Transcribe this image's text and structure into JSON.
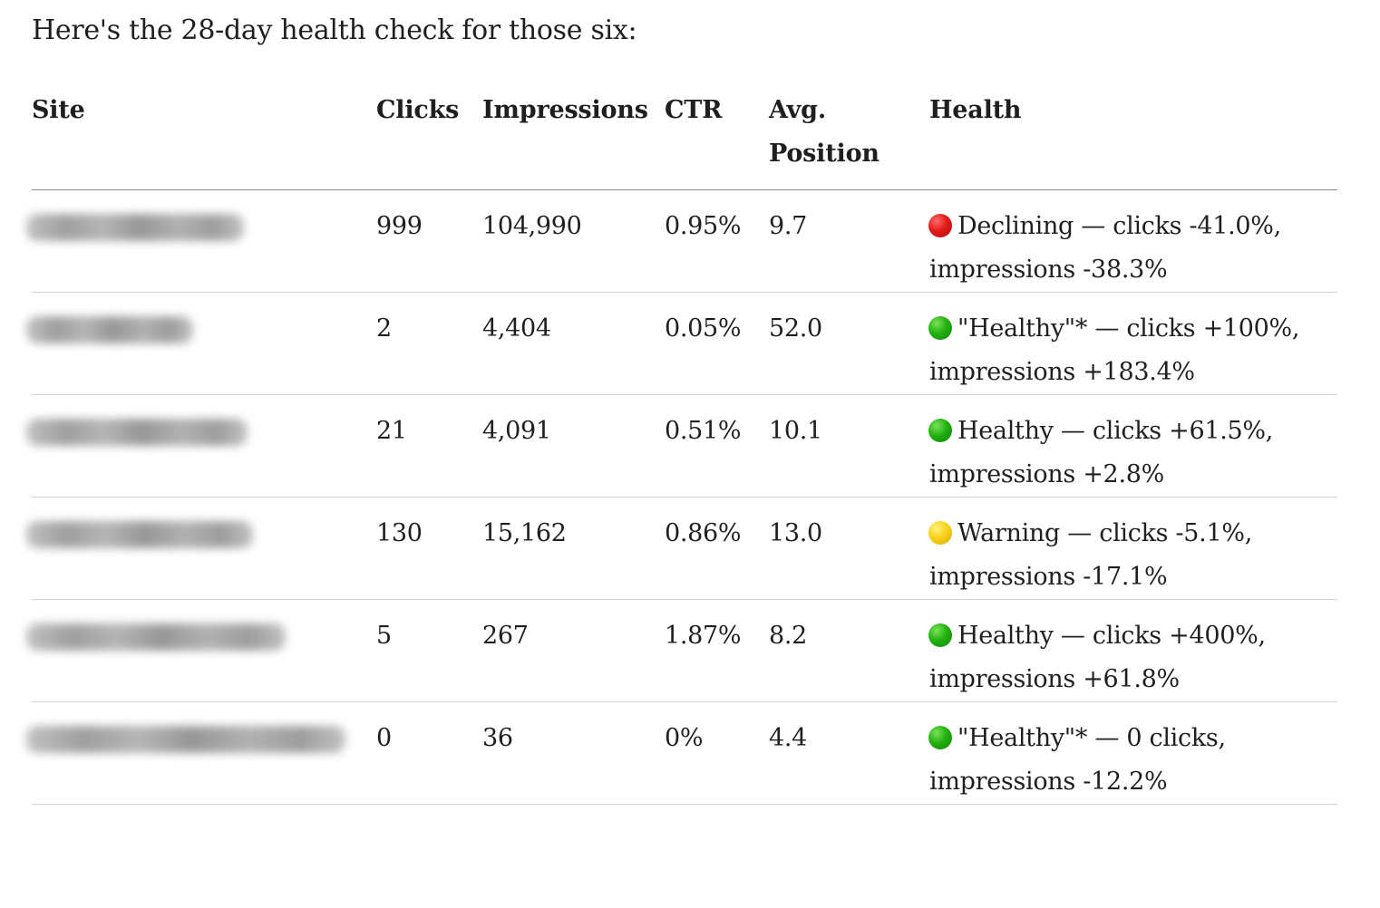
{
  "intro": "Here's the 28-day health check for those six:",
  "table": {
    "headers": {
      "site": "Site",
      "clicks": "Clicks",
      "impressions": "Impressions",
      "ctr": "CTR",
      "position_line1": "Avg.",
      "position_line2": "Position",
      "health": "Health"
    },
    "rows": [
      {
        "site": "[redacted]",
        "clicks": "999",
        "impressions": "104,990",
        "ctr": "0.95%",
        "position": "9.7",
        "status": "red",
        "status_icon": "red-circle-icon",
        "health": "Declining — clicks -41.0%, impressions -38.3%"
      },
      {
        "site": "[redacted]",
        "clicks": "2",
        "impressions": "4,404",
        "ctr": "0.05%",
        "position": "52.0",
        "status": "green",
        "status_icon": "green-circle-icon",
        "health": "\"Healthy\"* — clicks +100%, impressions +183.4%"
      },
      {
        "site": "[redacted]",
        "clicks": "21",
        "impressions": "4,091",
        "ctr": "0.51%",
        "position": "10.1",
        "status": "green",
        "status_icon": "green-circle-icon",
        "health": "Healthy — clicks +61.5%, impressions +2.8%"
      },
      {
        "site": "[redacted]",
        "clicks": "130",
        "impressions": "15,162",
        "ctr": "0.86%",
        "position": "13.0",
        "status": "yellow",
        "status_icon": "yellow-circle-icon",
        "health": "Warning — clicks -5.1%, impressions -17.1%"
      },
      {
        "site": "[redacted]",
        "clicks": "5",
        "impressions": "267",
        "ctr": "1.87%",
        "position": "8.2",
        "status": "green",
        "status_icon": "green-circle-icon",
        "health": "Healthy — clicks +400%, impressions +61.8%"
      },
      {
        "site": "[redacted]",
        "clicks": "0",
        "impressions": "36",
        "ctr": "0%",
        "position": "4.4",
        "status": "green",
        "status_icon": "green-circle-icon",
        "health": "\"Healthy\"* — 0 clicks, impressions -12.2%"
      }
    ]
  },
  "colors": {
    "red": "#e21b1b",
    "green": "#22b10f",
    "yellow": "#f7d21a"
  }
}
